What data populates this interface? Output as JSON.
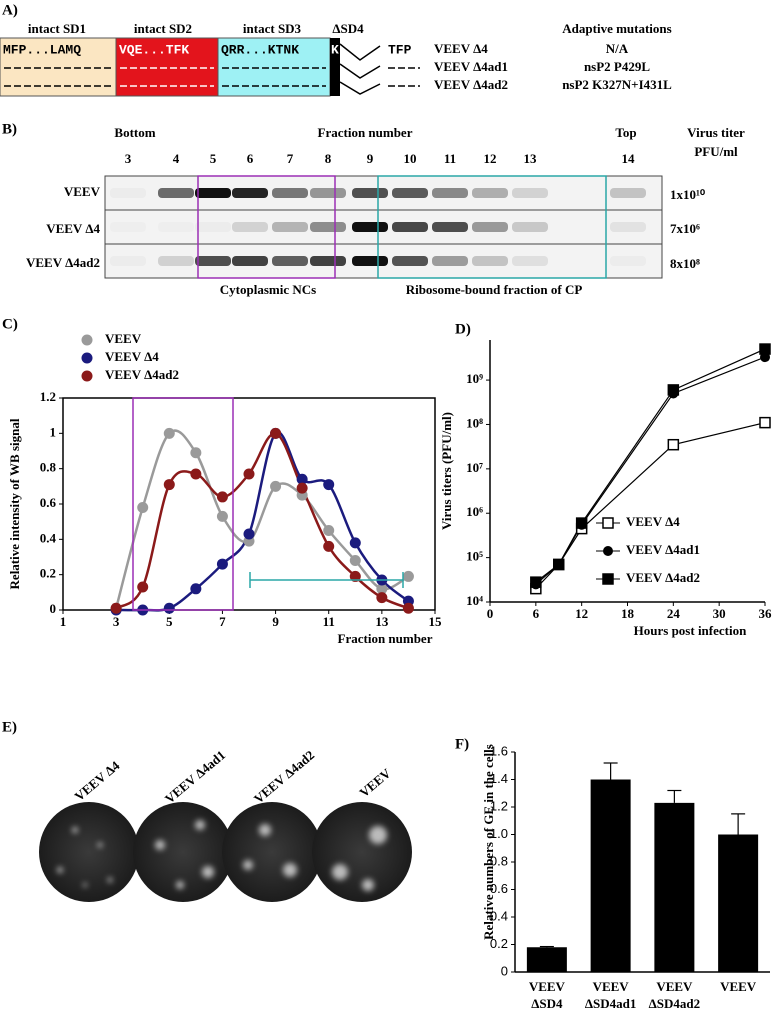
{
  "panels": {
    "A": {
      "label": "A)",
      "domains": [
        "intact SD1",
        "intact SD2",
        "intact SD3",
        "ΔSD4"
      ],
      "sequences": [
        "MFP...LAMQ",
        "VQE...TFK",
        "QRR...KTNK",
        "K",
        "TFP"
      ],
      "variants": [
        "VEEV Δ4",
        "VEEV Δ4ad1",
        "VEEV Δ4ad2"
      ],
      "mutations_header": "Adaptive mutations",
      "mutations": [
        "N/A",
        "nsP2 P429L",
        "nsP2 K327N+I431L"
      ]
    },
    "B": {
      "label": "B)",
      "bottom": "Bottom",
      "top": "Top",
      "fraction_header": "Fraction number",
      "titer_header": [
        "Virus titer",
        "PFU/ml"
      ],
      "fractions": [
        3,
        4,
        5,
        6,
        7,
        8,
        9,
        10,
        11,
        12,
        13,
        14
      ],
      "rows": [
        "VEEV",
        "VEEV Δ4",
        "VEEV Δ4ad2"
      ],
      "titers": [
        "1x10¹⁰",
        "7x10⁶",
        "8x10⁸"
      ],
      "annotations": [
        "Cytoplasmic NCs",
        "Ribosome-bound fraction of CP"
      ]
    },
    "E": {
      "label": "E)",
      "plaques": [
        "VEEV Δ4",
        "VEEV Δ4ad1",
        "VEEV Δ4ad2",
        "VEEV"
      ]
    }
  },
  "chart_data": [
    {
      "type": "line",
      "panel_label": "C)",
      "xlabel": "Fraction number",
      "ylabel": "Relative intensity of WB signal",
      "x": [
        3,
        4,
        5,
        6,
        7,
        8,
        9,
        10,
        11,
        12,
        13,
        14
      ],
      "xlim": [
        1,
        15
      ],
      "xticks": [
        1,
        3,
        5,
        7,
        9,
        11,
        13,
        15
      ],
      "ylim": [
        0,
        1.2
      ],
      "yticks": [
        0,
        0.2,
        0.4,
        0.6,
        0.8,
        1,
        1.2
      ],
      "legend": "upper left",
      "smooth": true,
      "series": [
        {
          "name": "VEEV",
          "color": "#9a9a9a",
          "values": [
            0.01,
            0.58,
            1.0,
            0.89,
            0.53,
            0.39,
            0.7,
            0.65,
            0.45,
            0.28,
            0.12,
            0.19
          ]
        },
        {
          "name": "VEEV Δ4",
          "color": "#1b1b7e",
          "values": [
            0,
            0,
            0.01,
            0.12,
            0.26,
            0.43,
            1.0,
            0.74,
            0.71,
            0.38,
            0.17,
            0.05
          ]
        },
        {
          "name": "VEEV Δ4ad2",
          "color": "#8b1a1a",
          "values": [
            0.01,
            0.13,
            0.71,
            0.77,
            0.64,
            0.77,
            1.0,
            0.69,
            0.36,
            0.19,
            0.07,
            0.01
          ]
        }
      ]
    },
    {
      "type": "line",
      "panel_label": "D)",
      "xlabel": "Hours post infection",
      "ylabel": "Virus titers (PFU/ml)",
      "x": [
        6,
        9,
        12,
        24,
        36
      ],
      "xlim": [
        0,
        36
      ],
      "xticks": [
        0,
        6,
        12,
        18,
        24,
        30,
        36
      ],
      "yscale": "log",
      "ylim": [
        10000,
        8000000000
      ],
      "yticks": [
        {
          "value": 10000,
          "label": "10⁴"
        },
        {
          "value": 100000,
          "label": "10⁵"
        },
        {
          "value": 1000000,
          "label": "10⁶"
        },
        {
          "value": 10000000,
          "label": "10⁷"
        },
        {
          "value": 100000000,
          "label": "10⁸"
        },
        {
          "value": 1000000000,
          "label": "10⁹"
        }
      ],
      "legend": "lower right",
      "series": [
        {
          "name": "VEEV Δ4",
          "color": "#000000",
          "marker": "open-square",
          "values": [
            20000,
            70000,
            450000,
            35000000,
            110000000
          ]
        },
        {
          "name": "VEEV Δ4ad1",
          "color": "#000000",
          "marker": "circle",
          "values": [
            25000,
            70000,
            550000,
            500000000,
            3300000000
          ]
        },
        {
          "name": "VEEV Δ4ad2",
          "color": "#000000",
          "marker": "square",
          "values": [
            28000,
            70000,
            600000,
            600000000,
            5000000000
          ]
        }
      ]
    },
    {
      "type": "bar",
      "panel_label": "F)",
      "ylabel": "Relative numbers of GE in the cells",
      "categories": [
        [
          "VEEV",
          "ΔSD4"
        ],
        [
          "VEEV",
          "ΔSD4ad1"
        ],
        [
          "VEEV",
          "ΔSD4ad2"
        ],
        [
          "VEEV"
        ]
      ],
      "values": [
        0.18,
        1.4,
        1.23,
        1.0
      ],
      "errors": [
        0.005,
        0.12,
        0.09,
        0.15
      ],
      "color": "#000000",
      "ylim": [
        0,
        1.6
      ],
      "yticks": [
        0,
        0.2,
        0.4,
        0.6,
        0.8,
        {
          "value": 1,
          "label": "1.0"
        },
        1.2,
        1.4,
        1.6
      ]
    }
  ]
}
